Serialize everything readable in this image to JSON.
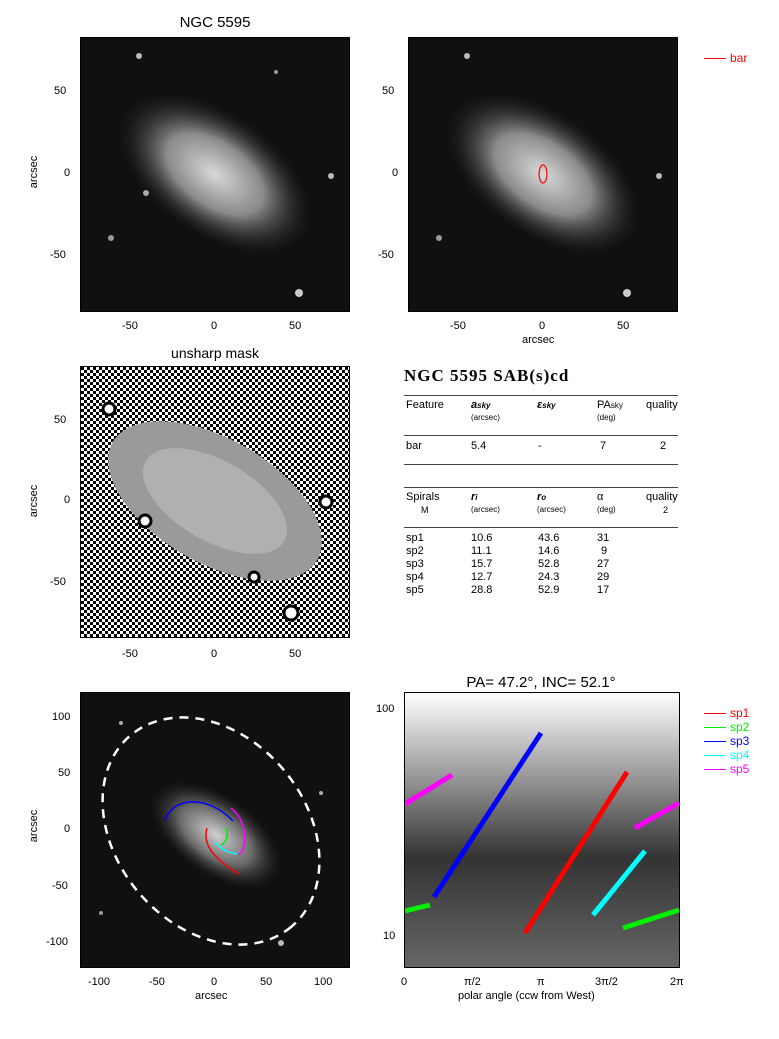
{
  "top_left": {
    "title": "NGC 5595",
    "ylabel": "arcsec",
    "xticks": [
      "-50",
      "0",
      "50"
    ],
    "yticks": [
      "50",
      "0",
      "-50"
    ]
  },
  "top_right": {
    "xlabel": "arcsec",
    "xticks": [
      "-50",
      "0",
      "50"
    ],
    "yticks": [
      "50",
      "0",
      "-50"
    ],
    "legend": {
      "label": "bar",
      "color": "#ff0000"
    }
  },
  "mid_left": {
    "title": "unsharp mask",
    "ylabel": "arcsec",
    "xticks": [
      "-50",
      "0",
      "50"
    ],
    "yticks": [
      "50",
      "0",
      "-50"
    ]
  },
  "table": {
    "title": "NGC 5595  SAB(s)cd",
    "bar_headers": {
      "c1": "Feature",
      "c2": "a",
      "c2sub": "sky",
      "c2unit": "(arcsec)",
      "c3": "ε",
      "c3sub": "sky",
      "c4": "PA",
      "c4sub": "sky",
      "c4unit": "(deg)",
      "c5": "quality"
    },
    "bar_row": {
      "feature": "bar",
      "a": "5.4",
      "eps": "-",
      "pa": "7",
      "quality": "2"
    },
    "spiral_headers": {
      "c1": "Spirals",
      "c1b": "M",
      "c2": "r",
      "c2sub": "i",
      "c2unit": "(arcsec)",
      "c3": "r",
      "c3sub": "o",
      "c3unit": "(arcsec)",
      "c4": "α",
      "c4unit": "(deg)",
      "c5": "quality",
      "c5b": "2"
    },
    "spirals": [
      {
        "name": "sp1",
        "ri": "10.6",
        "ro": "43.6",
        "alpha": "31"
      },
      {
        "name": "sp2",
        "ri": "11.1",
        "ro": "14.6",
        "alpha": "9"
      },
      {
        "name": "sp3",
        "ri": "15.7",
        "ro": "52.8",
        "alpha": "27"
      },
      {
        "name": "sp4",
        "ri": "12.7",
        "ro": "24.3",
        "alpha": "29"
      },
      {
        "name": "sp5",
        "ri": "28.8",
        "ro": "52.9",
        "alpha": "17"
      }
    ]
  },
  "bottom_left": {
    "ylabel": "arcsec",
    "xlabel": "arcsec",
    "xticks": [
      "-100",
      "-50",
      "0",
      "50",
      "100"
    ],
    "yticks": [
      "100",
      "50",
      "0",
      "-50",
      "-100"
    ]
  },
  "bottom_right": {
    "title": "PA= 47.2°, INC= 52.1°",
    "xlabel": "polar angle (ccw from West)",
    "xticks": [
      "0",
      "π/2",
      "π",
      "3π/2",
      "2π"
    ],
    "yticks": [
      "100",
      "10"
    ],
    "legend": [
      {
        "label": "sp1",
        "color": "#ff0000"
      },
      {
        "label": "sp2",
        "color": "#00ee00"
      },
      {
        "label": "sp3",
        "color": "#0000ff"
      },
      {
        "label": "sp4",
        "color": "#00ffff"
      },
      {
        "label": "sp5",
        "color": "#ff00ff"
      }
    ]
  }
}
